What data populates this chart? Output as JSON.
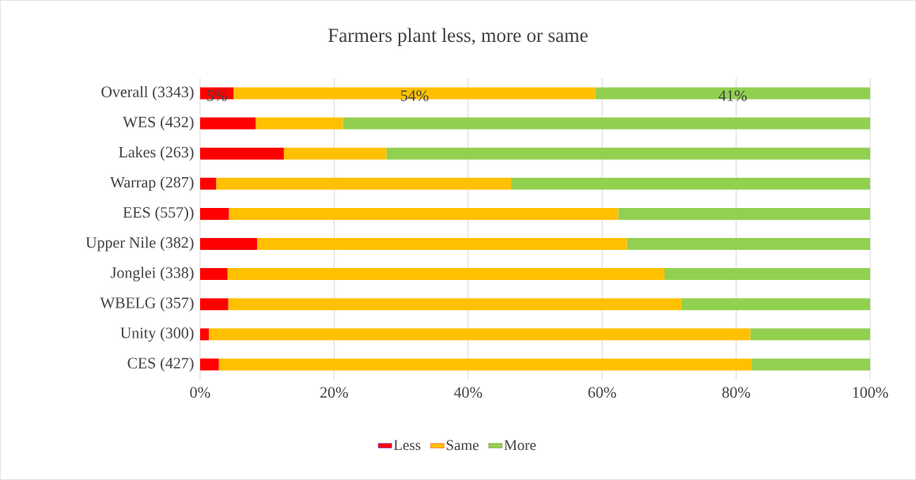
{
  "chart_data": {
    "type": "bar",
    "orientation": "horizontal",
    "stacked": true,
    "title": "Farmers plant less, more or  same",
    "categories": [
      "Overall (3343)",
      "WES (432)",
      "Lakes (263)",
      "Warrap (287)",
      "EES (557))",
      "Upper Nile (382)",
      "Jonglei (338)",
      "WBELG (357)",
      "Unity (300)",
      "CES (427)"
    ],
    "series": [
      {
        "name": "Less",
        "color": "#ff0000",
        "values": [
          5,
          8.3,
          12.5,
          2.4,
          4.3,
          8.5,
          4.1,
          4.2,
          1.3,
          2.8
        ],
        "value_labels": [
          "5%",
          null,
          null,
          null,
          null,
          null,
          null,
          null,
          null,
          null
        ]
      },
      {
        "name": "Same",
        "color": "#ffc000",
        "values": [
          54,
          13.0,
          15.3,
          44.0,
          58.1,
          55.2,
          65.2,
          67.6,
          80.8,
          79.5
        ],
        "value_labels": [
          "54%",
          null,
          null,
          null,
          null,
          null,
          null,
          null,
          null,
          null
        ]
      },
      {
        "name": "More",
        "color": "#92d050",
        "values": [
          41,
          78.7,
          72.2,
          53.6,
          37.6,
          36.3,
          30.7,
          28.2,
          17.9,
          17.7
        ],
        "value_labels": [
          "41%",
          null,
          null,
          null,
          null,
          null,
          null,
          null,
          null,
          null
        ]
      }
    ],
    "xlim": [
      0,
      100
    ],
    "xticks": [
      {
        "value": 0,
        "label": "0%"
      },
      {
        "value": 20,
        "label": "20%"
      },
      {
        "value": 40,
        "label": "40%"
      },
      {
        "value": 60,
        "label": "60%"
      },
      {
        "value": 80,
        "label": "80%"
      },
      {
        "value": 100,
        "label": "100%"
      }
    ],
    "grid": "x",
    "legend": "bottom"
  }
}
